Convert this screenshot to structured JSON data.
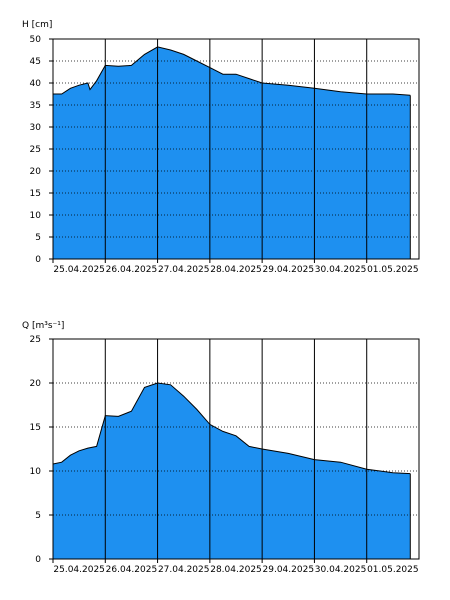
{
  "chart_data": [
    {
      "type": "area",
      "ylabel": "H [cm]",
      "ylim": [
        0,
        50
      ],
      "yticks": [
        0,
        5,
        10,
        15,
        20,
        25,
        30,
        35,
        40,
        45,
        50
      ],
      "xlim": [
        "2025-04-25 00:00",
        "2025-05-02 00:00"
      ],
      "xtick_labels": [
        "25.04.2025",
        "26.04.2025",
        "27.04.2025",
        "28.04.2025",
        "29.04.2025",
        "30.04.2025",
        "01.05.2025"
      ],
      "grid": true,
      "fill_color": "#1e90f0",
      "series": [
        {
          "x": [
            "2025-04-25 00:00",
            "2025-04-25 04:00",
            "2025-04-25 08:00",
            "2025-04-25 12:00",
            "2025-04-25 16:00",
            "2025-04-25 17:00",
            "2025-04-25 20:00",
            "2025-04-26 00:00",
            "2025-04-26 06:00",
            "2025-04-26 12:00",
            "2025-04-26 18:00",
            "2025-04-27 00:00",
            "2025-04-27 06:00",
            "2025-04-27 12:00",
            "2025-04-27 18:00",
            "2025-04-28 00:00",
            "2025-04-28 06:00",
            "2025-04-28 12:00",
            "2025-04-28 18:00",
            "2025-04-29 00:00",
            "2025-04-29 12:00",
            "2025-04-30 00:00",
            "2025-04-30 12:00",
            "2025-05-01 00:00",
            "2025-05-01 12:00",
            "2025-05-01 20:00"
          ],
          "y": [
            37.5,
            37.5,
            38.8,
            39.5,
            40.0,
            38.5,
            40.5,
            44.0,
            43.8,
            44.0,
            46.5,
            48.2,
            47.5,
            46.5,
            45.0,
            43.5,
            42.0,
            42.0,
            41.0,
            40.0,
            39.5,
            38.8,
            38.0,
            37.5,
            37.5,
            37.2
          ]
        }
      ]
    },
    {
      "type": "area",
      "ylabel": "Q [m³s⁻¹]",
      "ylim": [
        0,
        25
      ],
      "yticks": [
        0,
        5,
        10,
        15,
        20,
        25
      ],
      "xlim": [
        "2025-04-25 00:00",
        "2025-05-02 00:00"
      ],
      "xtick_labels": [
        "25.04.2025",
        "26.04.2025",
        "27.04.2025",
        "28.04.2025",
        "29.04.2025",
        "30.04.2025",
        "01.05.2025"
      ],
      "grid": true,
      "fill_color": "#1e90f0",
      "series": [
        {
          "x": [
            "2025-04-25 00:00",
            "2025-04-25 04:00",
            "2025-04-25 08:00",
            "2025-04-25 12:00",
            "2025-04-25 16:00",
            "2025-04-25 20:00",
            "2025-04-26 00:00",
            "2025-04-26 06:00",
            "2025-04-26 12:00",
            "2025-04-26 18:00",
            "2025-04-27 00:00",
            "2025-04-27 06:00",
            "2025-04-27 12:00",
            "2025-04-27 18:00",
            "2025-04-28 00:00",
            "2025-04-28 06:00",
            "2025-04-28 12:00",
            "2025-04-28 18:00",
            "2025-04-29 00:00",
            "2025-04-29 12:00",
            "2025-04-30 00:00",
            "2025-04-30 12:00",
            "2025-05-01 00:00",
            "2025-05-01 12:00",
            "2025-05-01 20:00"
          ],
          "y": [
            10.8,
            11.0,
            11.8,
            12.3,
            12.6,
            12.8,
            16.3,
            16.2,
            16.8,
            19.5,
            20.0,
            19.8,
            18.5,
            17.0,
            15.3,
            14.5,
            14.0,
            12.8,
            12.5,
            12.0,
            11.3,
            11.0,
            10.2,
            9.8,
            9.7
          ]
        }
      ]
    }
  ]
}
